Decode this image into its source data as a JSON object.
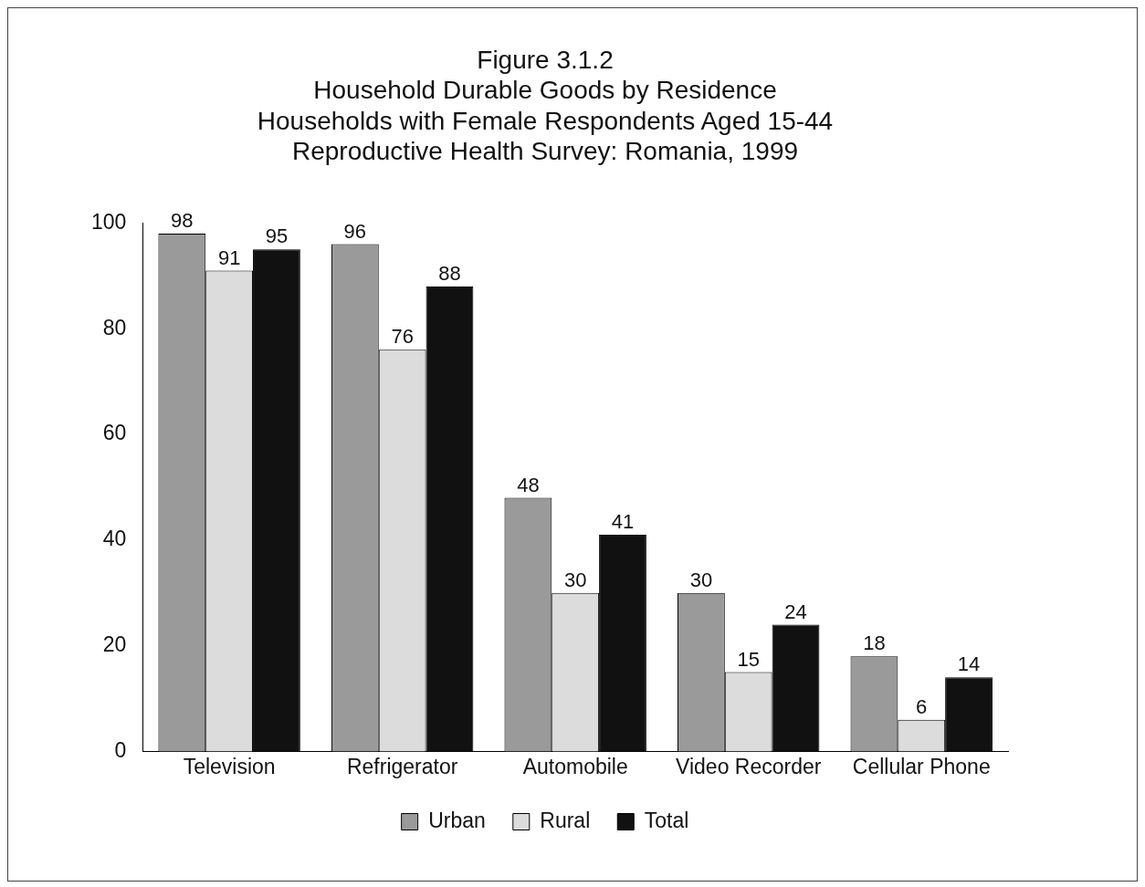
{
  "chart_data": {
    "type": "bar",
    "title": [
      "Figure 3.1.2",
      "Household Durable Goods by Residence",
      "Households with Female Respondents Aged 15-44",
      "Reproductive Health Survey: Romania, 1999"
    ],
    "categories": [
      "Television",
      "Refrigerator",
      "Automobile",
      "Video Recorder",
      "Cellular Phone"
    ],
    "series": [
      {
        "name": "Urban",
        "color": "#9a9a9a",
        "values": [
          98,
          96,
          48,
          30,
          18
        ]
      },
      {
        "name": "Rural",
        "color": "#dcdcdc",
        "values": [
          91,
          76,
          30,
          15,
          6
        ]
      },
      {
        "name": "Total",
        "color": "#111111",
        "values": [
          95,
          88,
          41,
          24,
          14
        ]
      }
    ],
    "ylim": [
      0,
      100
    ],
    "yticks": [
      0,
      20,
      40,
      60,
      80,
      100
    ],
    "grid": false,
    "legend": "bottom",
    "data_labels": true
  }
}
